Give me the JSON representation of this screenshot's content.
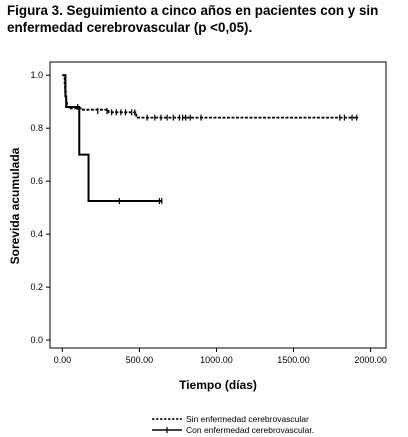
{
  "figure": {
    "title_line1": "Figura 3. Seguimiento a cinco años en pacientes con y sin",
    "title_line2": "enfermedad cerebrovascular (p <0,05)."
  },
  "chart_data": {
    "type": "line",
    "step": true,
    "xlabel": "Tiempo (días)",
    "ylabel": "Sorevida acumulada",
    "xlim": [
      -80,
      2100
    ],
    "ylim": [
      -0.03,
      1.05
    ],
    "xticks": [
      0,
      500,
      1000,
      1500,
      2000
    ],
    "xtick_labels": [
      "0.00",
      "500.00",
      "1000.00",
      "1500.00",
      "2000.00"
    ],
    "yticks": [
      0.0,
      0.2,
      0.4,
      0.6,
      0.8,
      1.0
    ],
    "ytick_labels": [
      "0.0",
      "0.2",
      "0.4",
      "0.6",
      "0.8",
      "1.0"
    ],
    "grid": false,
    "legend_position": "bottom",
    "series": [
      {
        "name": "Sin enfermedad cerebrovascular",
        "style": "dashed",
        "x": [
          0,
          15,
          18,
          22,
          25,
          30,
          40,
          120,
          300,
          480,
          1000,
          1920
        ],
        "y": [
          1.0,
          0.97,
          0.94,
          0.92,
          0.9,
          0.88,
          0.875,
          0.87,
          0.86,
          0.84,
          0.84,
          0.84
        ],
        "censored_x": [
          230,
          290,
          320,
          350,
          380,
          410,
          450,
          470,
          550,
          600,
          640,
          680,
          720,
          760,
          780,
          800,
          830,
          900,
          1800,
          1830,
          1880,
          1910
        ],
        "censored_y": [
          0.865,
          0.865,
          0.86,
          0.86,
          0.86,
          0.86,
          0.86,
          0.86,
          0.84,
          0.84,
          0.84,
          0.84,
          0.84,
          0.84,
          0.84,
          0.84,
          0.84,
          0.84,
          0.84,
          0.84,
          0.84,
          0.84
        ]
      },
      {
        "name": "Con enfermedad cerebrovascular.",
        "style": "solid",
        "x": [
          0,
          20,
          25,
          110,
          170,
          650
        ],
        "y": [
          1.0,
          0.92,
          0.88,
          0.7,
          0.525,
          0.525
        ],
        "censored_x": [
          100,
          370,
          630,
          645
        ],
        "censored_y": [
          0.88,
          0.525,
          0.525,
          0.525
        ]
      }
    ]
  }
}
